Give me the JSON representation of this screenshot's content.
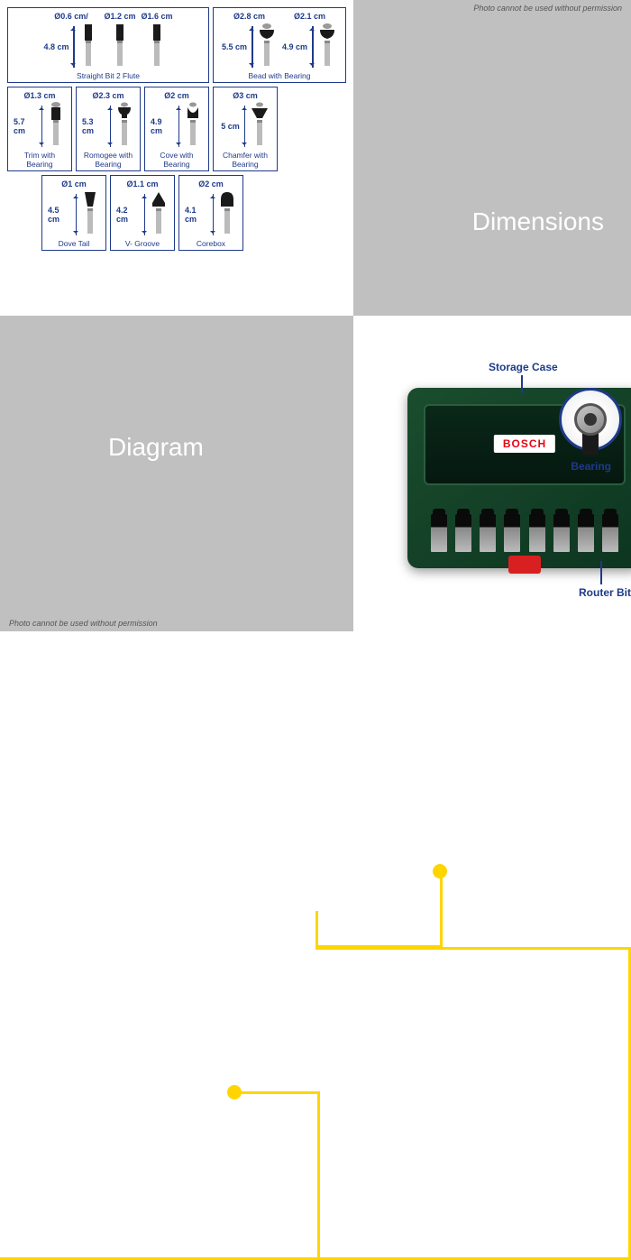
{
  "watermark": "Photo cannot be used without permission",
  "sections": {
    "dimensions": "Dimensions",
    "diagram": "Diagram"
  },
  "colors": {
    "accent": "#ffd500",
    "primary": "#1e3a8a",
    "quadrant_gray": "#c0c0c0",
    "case_green": "#1a4d2e",
    "bosch_red": "#e30613"
  },
  "bit_groups": [
    {
      "name": "Straight Bit 2 Flute",
      "width": "w3",
      "items": [
        {
          "dia": "Ø0.6 cm/",
          "h": "4.8 cm",
          "shape": "straight"
        },
        {
          "dia": "Ø1.2 cm",
          "h": "",
          "shape": "straight"
        },
        {
          "dia": "Ø1.6 cm",
          "h": "",
          "shape": "straight"
        }
      ]
    },
    {
      "name": "Bead with Bearing",
      "width": "w2",
      "items": [
        {
          "dia": "Ø2.8 cm",
          "h": "5.5 cm",
          "shape": "bead"
        },
        {
          "dia": "Ø2.1 cm",
          "h": "4.9 cm",
          "shape": "bead"
        }
      ]
    },
    {
      "name": "Trim with Bearing",
      "width": "w1",
      "items": [
        {
          "dia": "Ø1.3 cm",
          "h": "5.7 cm",
          "shape": "trim"
        }
      ]
    },
    {
      "name": "Romogee with Bearing",
      "width": "w1",
      "items": [
        {
          "dia": "Ø2.3 cm",
          "h": "5.3 cm",
          "shape": "romogee"
        }
      ]
    },
    {
      "name": "Cove with Bearing",
      "width": "w1",
      "items": [
        {
          "dia": "Ø2 cm",
          "h": "4.9 cm",
          "shape": "cove"
        }
      ]
    },
    {
      "name": "Chamfer with Bearing",
      "width": "w1",
      "items": [
        {
          "dia": "Ø3 cm",
          "h": "5 cm",
          "shape": "chamfer"
        }
      ]
    },
    {
      "name": "Dove Tail",
      "width": "w1",
      "items": [
        {
          "dia": "Ø1 cm",
          "h": "4.5 cm",
          "shape": "dovetail"
        }
      ]
    },
    {
      "name": "V- Groove",
      "width": "w1",
      "items": [
        {
          "dia": "Ø1.1 cm",
          "h": "4.2 cm",
          "shape": "vgroove"
        }
      ]
    },
    {
      "name": "Corebox",
      "width": "w1",
      "items": [
        {
          "dia": "Ø2 cm",
          "h": "4.1 cm",
          "shape": "corebox"
        }
      ]
    }
  ],
  "callouts": {
    "storage_case": "Storage Case",
    "bearing": "Bearing",
    "router_bit": "Router Bit"
  },
  "brand": "BOSCH"
}
